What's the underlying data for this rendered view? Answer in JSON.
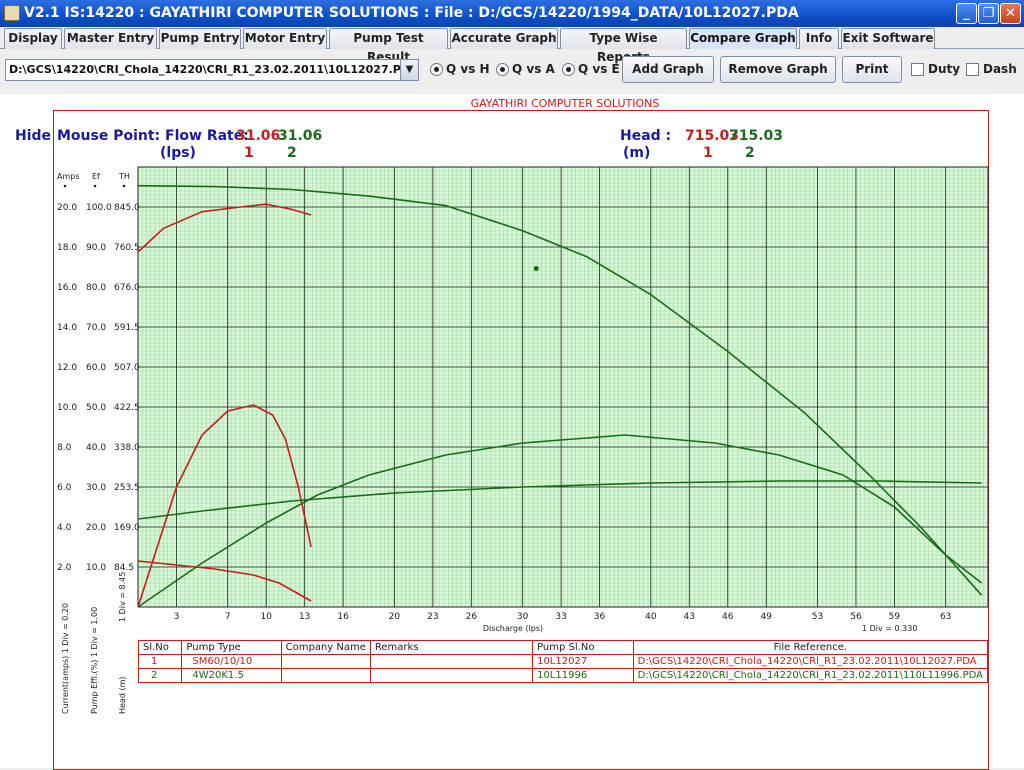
{
  "window": {
    "title": "V2.1  IS:14220 : GAYATHIRI COMPUTER SOLUTIONS : File : D:/GCS/14220/1994_DATA/10L12027.PDA",
    "minimize": "_",
    "maximize": "❐",
    "close": "✕"
  },
  "menu": {
    "tabs": [
      {
        "label": "Display"
      },
      {
        "label": "Master Entry"
      },
      {
        "label": "Pump Entry"
      },
      {
        "label": "Motor Entry"
      },
      {
        "label": "Pump Test Result"
      },
      {
        "label": "Accurate Graph"
      },
      {
        "label": "Type Wise Reports"
      },
      {
        "label": "Compare Graph"
      },
      {
        "label": "Info"
      },
      {
        "label": "Exit Software"
      }
    ]
  },
  "toolbar": {
    "file_combo": "D:\\GCS\\14220\\CRI_Chola_14220\\CRI_R1_23.02.2011\\10L12027.PDA",
    "radio_qh": "Q vs H",
    "radio_qa": "Q vs A",
    "radio_qe": "Q vs E",
    "add_graph": "Add Graph",
    "remove_graph": "Remove Graph",
    "print": "Print",
    "duty": "Duty",
    "dash": "Dash"
  },
  "header": {
    "company": "GAYATHIRI COMPUTER SOLUTIONS",
    "hide": "Hide",
    "mouse_point": "Mouse Point: Flow Rate:",
    "flow_1": "31.06",
    "flow_2": "31.06",
    "flow_unit": "(lps)",
    "idx_1": "1",
    "idx_2": "2",
    "head_label": "Head :",
    "head_1": "715.03",
    "head_2": "715.03",
    "head_unit": "(m)"
  },
  "axes": {
    "col_amps": "Amps",
    "col_eff": "Ef",
    "col_th": "TH",
    "amps_ticks": [
      "20.0",
      "18.0",
      "16.0",
      "14.0",
      "12.0",
      "10.0",
      "8.0",
      "6.0",
      "4.0",
      "2.0"
    ],
    "eff_ticks": [
      "100.0",
      "90.0",
      "80.0",
      "70.0",
      "60.0",
      "50.0",
      "40.0",
      "30.0",
      "20.0",
      "10.0"
    ],
    "th_ticks": [
      "845.0",
      "760.5",
      "676.0",
      "591.5",
      "507.0",
      "422.5",
      "338.0",
      "253.5",
      "169.0",
      "84.5"
    ],
    "x_ticks": [
      "3",
      "7",
      "10",
      "13",
      "16",
      "20",
      "23",
      "26",
      "30",
      "33",
      "36",
      "40",
      "43",
      "46",
      "49",
      "53",
      "56",
      "59",
      "63"
    ],
    "x_label": "Discharge (lps)",
    "x_div": "1 Div = 0.330",
    "current_label": "Current(amps) 1 Div = 0.20",
    "eff_label": "Pump Effi.(%) 1 Div = 1.00",
    "head_axis_label": "Head (m)",
    "head_div": "1 Div = 8.45"
  },
  "chart_data": {
    "type": "line",
    "xlabel": "Discharge (lps)",
    "xlim": [
      0,
      66.3
    ],
    "ylim_head": [
      0,
      929.5
    ],
    "ylim_eff": [
      0,
      110
    ],
    "ylim_amps": [
      0,
      22
    ],
    "series": [
      {
        "id": "1",
        "color": "#c81c1c",
        "head": [
          [
            0,
            750
          ],
          [
            2,
            800
          ],
          [
            5,
            835
          ],
          [
            8,
            845
          ],
          [
            10,
            851
          ],
          [
            12,
            840
          ],
          [
            13.5,
            828
          ]
        ],
        "efficiency": [
          [
            0,
            0
          ],
          [
            3,
            30
          ],
          [
            5,
            43
          ],
          [
            7,
            49
          ],
          [
            9,
            50.5
          ],
          [
            10.5,
            48
          ],
          [
            11.5,
            42
          ],
          [
            12.5,
            30
          ],
          [
            13.5,
            15
          ]
        ],
        "current": [
          [
            0,
            2.3
          ],
          [
            3,
            2.1
          ],
          [
            6,
            1.9
          ],
          [
            9,
            1.6
          ],
          [
            11,
            1.2
          ],
          [
            13.5,
            0.3
          ]
        ]
      },
      {
        "id": "2",
        "color": "#1a6a1a",
        "head": [
          [
            0,
            890
          ],
          [
            6,
            888
          ],
          [
            12,
            882
          ],
          [
            18,
            868
          ],
          [
            24,
            848
          ],
          [
            30,
            795
          ],
          [
            35,
            740
          ],
          [
            40,
            660
          ],
          [
            46,
            540
          ],
          [
            52,
            410
          ],
          [
            57,
            280
          ],
          [
            61,
            170
          ],
          [
            63,
            110
          ],
          [
            65.8,
            25
          ]
        ],
        "efficiency": [
          [
            0,
            0
          ],
          [
            5,
            11
          ],
          [
            10,
            21
          ],
          [
            14,
            28
          ],
          [
            18,
            33
          ],
          [
            24,
            38
          ],
          [
            30,
            41
          ],
          [
            38,
            43
          ],
          [
            45,
            41
          ],
          [
            50,
            38
          ],
          [
            55,
            33
          ],
          [
            59,
            25
          ],
          [
            63,
            13
          ],
          [
            65.8,
            6
          ]
        ],
        "current": [
          [
            0,
            4.4
          ],
          [
            5,
            4.8
          ],
          [
            12,
            5.3
          ],
          [
            20,
            5.7
          ],
          [
            30,
            6.0
          ],
          [
            40,
            6.2
          ],
          [
            50,
            6.3
          ],
          [
            58,
            6.3
          ],
          [
            65.8,
            6.2
          ]
        ]
      }
    ]
  },
  "table": {
    "headers": [
      "Sl.No",
      "Pump Type",
      "Company Name",
      "Remarks",
      "Pump Sl.No",
      "File Reference."
    ],
    "rows": [
      {
        "slno": "1",
        "type": "SM60/10/10",
        "company": "",
        "remarks": "",
        "pump_slno": "10L12027",
        "file": "D:\\GCS\\14220\\CRI_Chola_14220\\CRI_R1_23.02.2011\\10L12027.PDA"
      },
      {
        "slno": "2",
        "type": "4W20K1.5",
        "company": "",
        "remarks": "",
        "pump_slno": "10L11996",
        "file": "D:\\GCS\\14220\\CRI_Chola_14220\\CRI_R1_23.02.2011\\110L11996.PDA"
      }
    ]
  }
}
